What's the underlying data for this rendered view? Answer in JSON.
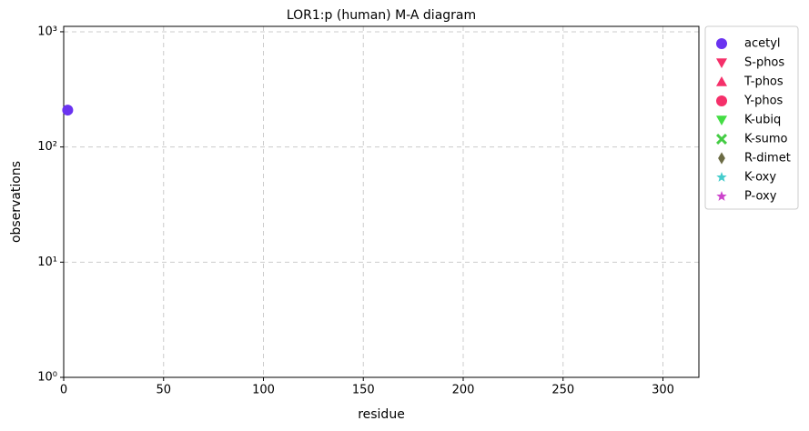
{
  "chart_data": {
    "type": "scatter",
    "title": "LOR1:p (human) M-A diagram",
    "x_label": "residue",
    "y_label": "observations",
    "xlim": [
      0,
      318
    ],
    "xticks": [
      0,
      50,
      100,
      150,
      200,
      250,
      300
    ],
    "ylim": [
      1,
      1114
    ],
    "log_y": true,
    "yticks": [
      {
        "value": 1,
        "label": "10⁰"
      },
      {
        "value": 10,
        "label": "10¹"
      },
      {
        "value": 100,
        "label": "10²"
      },
      {
        "value": 1000,
        "label": "10³"
      }
    ],
    "grid": true,
    "legend": "outside right",
    "series": [
      {
        "name": "acetyl",
        "color": "#6a33f0",
        "marker": "circle",
        "x": [
          2
        ],
        "values": [
          209
        ]
      },
      {
        "name": "S-phos",
        "color": "#f5306a",
        "marker": "triangle-down",
        "x": [],
        "values": []
      },
      {
        "name": "T-phos",
        "color": "#f5306a",
        "marker": "triangle-up",
        "x": [],
        "values": []
      },
      {
        "name": "Y-phos",
        "color": "#f5306a",
        "marker": "circle",
        "x": [],
        "values": []
      },
      {
        "name": "K-ubiq",
        "color": "#44dd44",
        "marker": "triangle-down",
        "x": [],
        "values": []
      },
      {
        "name": "K-sumo",
        "color": "#44cc44",
        "marker": "x",
        "x": [],
        "values": []
      },
      {
        "name": "R-dimet",
        "color": "#6b6b44",
        "marker": "diamond",
        "x": [],
        "values": []
      },
      {
        "name": "K-oxy",
        "color": "#44cccc",
        "marker": "star",
        "x": [],
        "values": []
      },
      {
        "name": "P-oxy",
        "color": "#cc44cc",
        "marker": "star",
        "x": [],
        "values": []
      }
    ]
  }
}
